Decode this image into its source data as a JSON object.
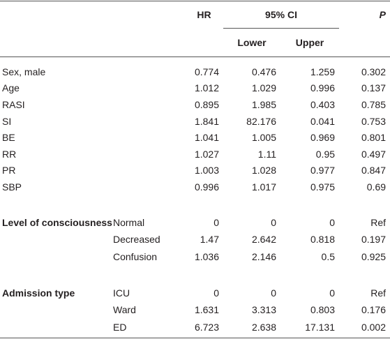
{
  "table": {
    "header": {
      "hr": "HR",
      "ci": "95% CI",
      "lower": "Lower",
      "upper": "Upper",
      "p": "P"
    },
    "rows": [
      {
        "label": "Sex, male",
        "values": [
          0.774,
          0.476,
          1.259,
          0.302
        ]
      },
      {
        "label": "Age",
        "values": [
          1.012,
          1.029,
          0.996,
          0.137
        ]
      },
      {
        "label": "RASI",
        "values": [
          0.895,
          1.985,
          0.403,
          0.785
        ]
      },
      {
        "label": "SI",
        "values": [
          1.841,
          82.176,
          0.041,
          0.753
        ]
      },
      {
        "label": "BE",
        "values": [
          1.041,
          1.005,
          0.969,
          0.801
        ]
      },
      {
        "label": "RR",
        "values": [
          1.027,
          1.11,
          0.95,
          0.497
        ]
      },
      {
        "label": "PR",
        "values": [
          1.003,
          1.028,
          0.977,
          0.847
        ]
      },
      {
        "label": "SBP",
        "values": [
          0.996,
          1.017,
          0.975,
          0.69
        ]
      },
      {
        "group": "Level of consciousness",
        "level": "Normal",
        "values": [
          0,
          0,
          0,
          "Ref"
        ]
      },
      {
        "level": "Decreased",
        "values": [
          1.47,
          2.642,
          0.818,
          0.197
        ]
      },
      {
        "level": "Confusion",
        "values": [
          1.036,
          2.146,
          0.5,
          0.925
        ]
      },
      {
        "group": "Admission type",
        "level": "ICU",
        "values": [
          0,
          0,
          0,
          "Ref"
        ]
      },
      {
        "level": "Ward",
        "values": [
          1.631,
          3.313,
          0.803,
          0.176
        ]
      },
      {
        "level": "ED",
        "values": [
          6.723,
          2.638,
          17.131,
          0.002
        ]
      }
    ]
  }
}
